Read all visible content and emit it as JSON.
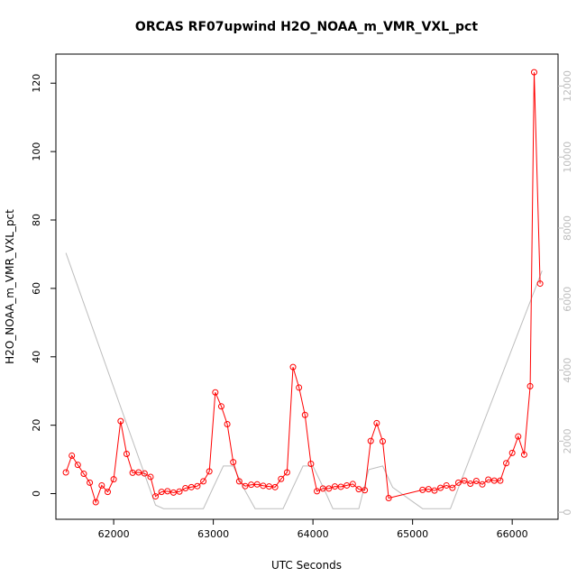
{
  "chart_data": {
    "type": "line",
    "title": "ORCAS RF07upwind H2O_NOAA_m_VMR_VXL_pct",
    "xlabel": "UTC Seconds",
    "ylabel": "H2O_NOAA_m_VMR_VXL_pct",
    "xlim": [
      61420,
      66460
    ],
    "ylim": [
      -7.5,
      128.5
    ],
    "y2lim": [
      -200,
      12900
    ],
    "x_ticks": [
      62000,
      63000,
      64000,
      65000,
      66000
    ],
    "y_ticks": [
      0,
      20,
      40,
      60,
      80,
      100,
      120
    ],
    "y2_ticks": [
      0,
      2000,
      4000,
      6000,
      8000,
      10000,
      12000
    ],
    "colors": {
      "primary": "#ff0000",
      "secondary": "#bdbdbd"
    },
    "grid": false,
    "series": [
      {
        "axis": "left",
        "color": "#ff0000",
        "markers": true,
        "points": [
          [
            61520,
            6.2
          ],
          [
            61580,
            11.1
          ],
          [
            61640,
            8.4
          ],
          [
            61700,
            5.8
          ],
          [
            61760,
            3.2
          ],
          [
            61820,
            -2.5
          ],
          [
            61880,
            2.4
          ],
          [
            61940,
            0.5
          ],
          [
            62000,
            4.2
          ],
          [
            62070,
            21.2
          ],
          [
            62130,
            11.6
          ],
          [
            62190,
            6.1
          ],
          [
            62250,
            6.2
          ],
          [
            62310,
            5.9
          ],
          [
            62370,
            4.9
          ],
          [
            62420,
            -0.8
          ],
          [
            62480,
            0.5
          ],
          [
            62540,
            0.7
          ],
          [
            62600,
            0.3
          ],
          [
            62660,
            0.6
          ],
          [
            62720,
            1.6
          ],
          [
            62780,
            1.9
          ],
          [
            62840,
            2.2
          ],
          [
            62900,
            3.6
          ],
          [
            62960,
            6.5
          ],
          [
            63020,
            29.6
          ],
          [
            63080,
            25.5
          ],
          [
            63140,
            20.3
          ],
          [
            63200,
            9.2
          ],
          [
            63260,
            3.6
          ],
          [
            63320,
            2.2
          ],
          [
            63380,
            2.6
          ],
          [
            63440,
            2.7
          ],
          [
            63500,
            2.3
          ],
          [
            63560,
            2.1
          ],
          [
            63620,
            1.9
          ],
          [
            63680,
            4.3
          ],
          [
            63740,
            6.2
          ],
          [
            63800,
            37.0
          ],
          [
            63860,
            31.0
          ],
          [
            63920,
            23.0
          ],
          [
            63980,
            8.7
          ],
          [
            64040,
            0.7
          ],
          [
            64100,
            1.5
          ],
          [
            64160,
            1.5
          ],
          [
            64220,
            2.1
          ],
          [
            64280,
            2.0
          ],
          [
            64340,
            2.4
          ],
          [
            64400,
            2.8
          ],
          [
            64460,
            1.3
          ],
          [
            64520,
            1.0
          ],
          [
            64580,
            15.4
          ],
          [
            64640,
            20.6
          ],
          [
            64700,
            15.3
          ],
          [
            64760,
            -1.3
          ],
          [
            65100,
            1.1
          ],
          [
            65160,
            1.3
          ],
          [
            65220,
            0.9
          ],
          [
            65280,
            1.7
          ],
          [
            65340,
            2.4
          ],
          [
            65400,
            1.7
          ],
          [
            65460,
            3.2
          ],
          [
            65520,
            3.8
          ],
          [
            65580,
            2.9
          ],
          [
            65640,
            3.7
          ],
          [
            65700,
            2.7
          ],
          [
            65760,
            4.1
          ],
          [
            65820,
            3.8
          ],
          [
            65880,
            3.8
          ],
          [
            65940,
            8.9
          ],
          [
            66000,
            11.9
          ],
          [
            66060,
            16.7
          ],
          [
            66120,
            11.4
          ],
          [
            66180,
            31.4
          ],
          [
            66220,
            123.2
          ],
          [
            66280,
            61.4
          ]
        ]
      },
      {
        "axis": "right",
        "color": "#bdbdbd",
        "markers": false,
        "points": [
          [
            61520,
            7300
          ],
          [
            62420,
            200
          ],
          [
            62500,
            100
          ],
          [
            62900,
            100
          ],
          [
            63000,
            700
          ],
          [
            63100,
            1300
          ],
          [
            63200,
            1300
          ],
          [
            63300,
            700
          ],
          [
            63420,
            100
          ],
          [
            63700,
            100
          ],
          [
            63800,
            700
          ],
          [
            63900,
            1300
          ],
          [
            64000,
            1300
          ],
          [
            64120,
            600
          ],
          [
            64200,
            100
          ],
          [
            64460,
            100
          ],
          [
            64560,
            1200
          ],
          [
            64700,
            1300
          ],
          [
            64800,
            700
          ],
          [
            65100,
            100
          ],
          [
            65380,
            100
          ],
          [
            66300,
            6800
          ]
        ]
      }
    ]
  }
}
